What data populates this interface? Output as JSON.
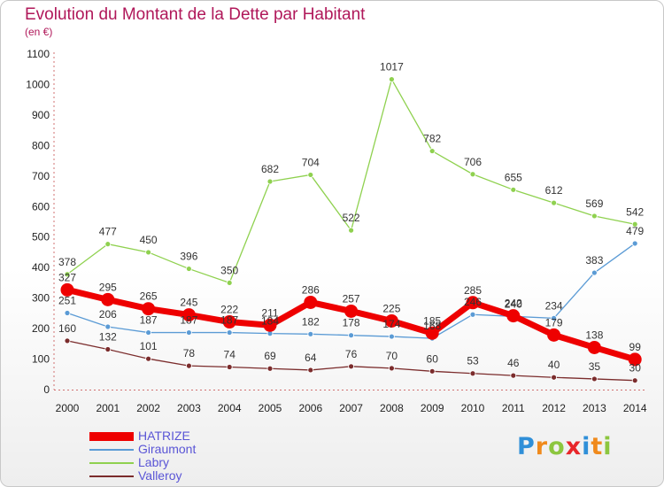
{
  "chart_data": {
    "type": "line",
    "title": "Evolution du Montant de la Dette par Habitant",
    "subtitle": "(en €)",
    "x": [
      "2000",
      "2001",
      "2002",
      "2003",
      "2004",
      "2005",
      "2006",
      "2007",
      "2008",
      "2009",
      "2010",
      "2011",
      "2012",
      "2013",
      "2014"
    ],
    "y_ticks": [
      "0",
      "100",
      "200",
      "300",
      "400",
      "500",
      "600",
      "700",
      "800",
      "900",
      "1000",
      "1100"
    ],
    "ylim": [
      0,
      1100
    ],
    "grid": false,
    "legend_position": "bottom-left",
    "series": [
      {
        "name": "Labry",
        "color": "#8fd14f",
        "values": [
          378,
          477,
          450,
          396,
          350,
          682,
          704,
          522,
          1017,
          782,
          706,
          655,
          612,
          569,
          542
        ],
        "labels": [
          "378",
          "477",
          "450",
          "396",
          "350",
          "682",
          "704",
          "522",
          "1017",
          "782",
          "706",
          "655",
          "612",
          "569",
          "542"
        ]
      },
      {
        "name": "Giraumont",
        "color": "#5b9bd5",
        "values": [
          251,
          206,
          187,
          187,
          187,
          184,
          182,
          178,
          174,
          168,
          246,
          240,
          234,
          383,
          479
        ],
        "labels": [
          "251",
          "206",
          "187",
          "187",
          "187",
          "184",
          "182",
          "178",
          "174",
          "168",
          "246",
          "240",
          "234",
          "383",
          "479"
        ]
      },
      {
        "name": "Valleroy",
        "color": "#7b2c2c",
        "values": [
          160,
          132,
          101,
          78,
          74,
          69,
          64,
          76,
          70,
          60,
          53,
          46,
          40,
          35,
          30
        ],
        "labels": [
          "160",
          "132",
          "101",
          "78",
          "74",
          "69",
          "64",
          "76",
          "70",
          "60",
          "53",
          "46",
          "40",
          "35",
          "30"
        ]
      },
      {
        "name": "HATRIZE",
        "color": "#ee0000",
        "values": [
          327,
          295,
          265,
          245,
          222,
          211,
          286,
          257,
          225,
          185,
          285,
          242,
          179,
          138,
          99
        ],
        "labels": [
          "327",
          "295",
          "265",
          "245",
          "222",
          "211",
          "286",
          "257",
          "225",
          "185",
          "285",
          "242",
          "179",
          "138",
          "99"
        ]
      }
    ],
    "legend_order": [
      "HATRIZE",
      "Giraumont",
      "Labry",
      "Valleroy"
    ]
  },
  "branding": {
    "letters": [
      "P",
      "r",
      "o",
      "x",
      "i",
      "t",
      "i"
    ]
  }
}
